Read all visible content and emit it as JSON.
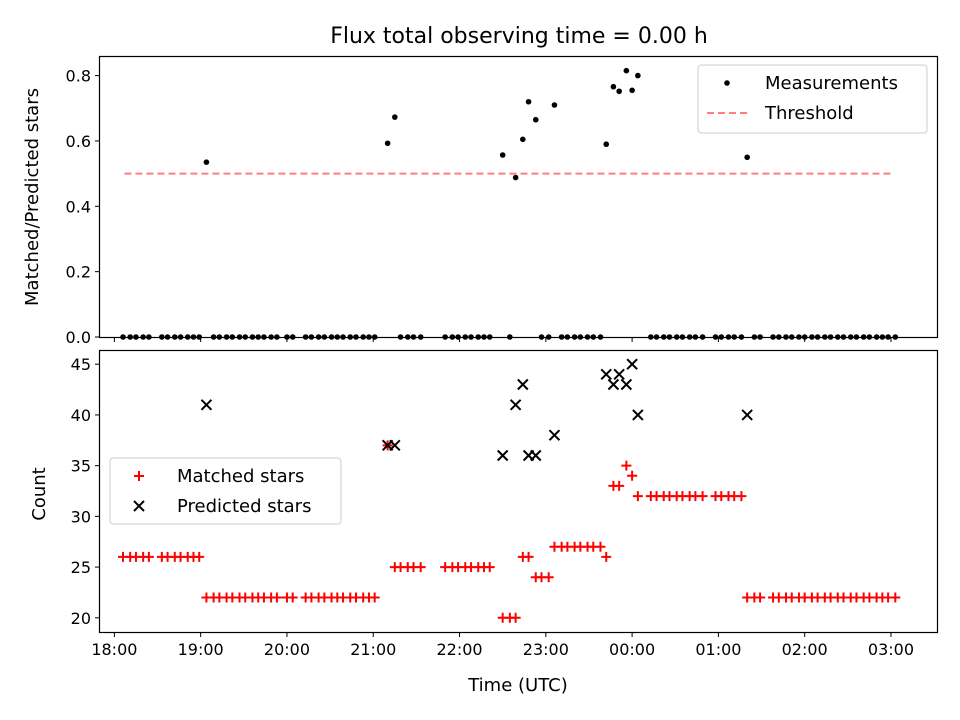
{
  "title": "Flux total observing time = 0.00 h",
  "colors": {
    "measurement": "#000000",
    "threshold": "#ff7f7f",
    "matched": "#ff0000",
    "predicted": "#000000"
  },
  "chart_data": [
    {
      "type": "scatter",
      "panel": "top",
      "xlabel": "",
      "ylabel": "Matched/Predicted stars",
      "xlim": [
        "17:50",
        "03:32"
      ],
      "ylim": [
        0,
        0.86
      ],
      "x_ticks": [
        "18:00",
        "19:00",
        "20:00",
        "21:00",
        "22:00",
        "23:00",
        "00:00",
        "01:00",
        "02:00",
        "03:00"
      ],
      "y_ticks": [
        "0.0",
        "0.2",
        "0.4",
        "0.6",
        "0.8"
      ],
      "legend": {
        "position": "top-right",
        "entries": [
          "Measurements",
          "Threshold"
        ]
      },
      "threshold": {
        "value": 0.5,
        "x_start": "18:07",
        "x_end": "03:02"
      },
      "series": [
        {
          "name": "Measurements",
          "marker": "dot",
          "points": [
            [
              "18:06",
              0
            ],
            [
              "18:11",
              0
            ],
            [
              "18:15",
              0
            ],
            [
              "18:20",
              0
            ],
            [
              "18:24",
              0
            ],
            [
              "18:33",
              0
            ],
            [
              "18:37",
              0
            ],
            [
              "18:42",
              0
            ],
            [
              "18:46",
              0
            ],
            [
              "18:51",
              0
            ],
            [
              "18:55",
              0
            ],
            [
              "18:59",
              0
            ],
            [
              "19:04",
              0.535
            ],
            [
              "19:09",
              0
            ],
            [
              "19:13",
              0
            ],
            [
              "19:18",
              0
            ],
            [
              "19:22",
              0
            ],
            [
              "19:27",
              0
            ],
            [
              "19:31",
              0
            ],
            [
              "19:36",
              0
            ],
            [
              "19:40",
              0
            ],
            [
              "19:44",
              0
            ],
            [
              "19:49",
              0
            ],
            [
              "19:53",
              0
            ],
            [
              "20:00",
              0
            ],
            [
              "20:04",
              0
            ],
            [
              "20:13",
              0
            ],
            [
              "20:17",
              0
            ],
            [
              "20:22",
              0
            ],
            [
              "20:26",
              0
            ],
            [
              "20:31",
              0
            ],
            [
              "20:35",
              0
            ],
            [
              "20:39",
              0
            ],
            [
              "20:44",
              0
            ],
            [
              "20:48",
              0
            ],
            [
              "20:53",
              0
            ],
            [
              "20:57",
              0
            ],
            [
              "21:01",
              0
            ],
            [
              "21:10",
              0.593
            ],
            [
              "21:15",
              0.673
            ],
            [
              "21:19",
              0
            ],
            [
              "21:24",
              0
            ],
            [
              "21:28",
              0
            ],
            [
              "21:33",
              0
            ],
            [
              "21:50",
              0
            ],
            [
              "21:55",
              0
            ],
            [
              "21:59",
              0
            ],
            [
              "22:04",
              0
            ],
            [
              "22:08",
              0
            ],
            [
              "22:13",
              0
            ],
            [
              "22:17",
              0
            ],
            [
              "22:21",
              0
            ],
            [
              "22:30",
              0.557
            ],
            [
              "22:35",
              0
            ],
            [
              "22:39",
              0.488
            ],
            [
              "22:44",
              0.605
            ],
            [
              "22:48",
              0.72
            ],
            [
              "22:53",
              0.665
            ],
            [
              "22:57",
              0
            ],
            [
              "23:02",
              0
            ],
            [
              "23:06",
              0.71
            ],
            [
              "23:11",
              0
            ],
            [
              "23:15",
              0
            ],
            [
              "23:20",
              0
            ],
            [
              "23:24",
              0
            ],
            [
              "23:29",
              0
            ],
            [
              "23:33",
              0
            ],
            [
              "23:38",
              0
            ],
            [
              "23:42",
              0.59
            ],
            [
              "23:47",
              0.766
            ],
            [
              "23:51",
              0.752
            ],
            [
              "23:56",
              0.815
            ],
            [
              "00:00",
              0.755
            ],
            [
              "00:04",
              0.8
            ],
            [
              "00:13",
              0
            ],
            [
              "00:17",
              0
            ],
            [
              "00:22",
              0
            ],
            [
              "00:26",
              0
            ],
            [
              "00:31",
              0
            ],
            [
              "00:35",
              0
            ],
            [
              "00:40",
              0
            ],
            [
              "00:44",
              0
            ],
            [
              "00:49",
              0
            ],
            [
              "00:58",
              0
            ],
            [
              "01:02",
              0
            ],
            [
              "01:07",
              0
            ],
            [
              "01:11",
              0
            ],
            [
              "01:16",
              0
            ],
            [
              "01:20",
              0.55
            ],
            [
              "01:25",
              0
            ],
            [
              "01:29",
              0
            ],
            [
              "01:38",
              0
            ],
            [
              "01:42",
              0
            ],
            [
              "01:47",
              0
            ],
            [
              "01:51",
              0
            ],
            [
              "01:56",
              0
            ],
            [
              "02:00",
              0
            ],
            [
              "02:05",
              0
            ],
            [
              "02:09",
              0
            ],
            [
              "02:14",
              0
            ],
            [
              "02:18",
              0
            ],
            [
              "02:23",
              0
            ],
            [
              "02:27",
              0
            ],
            [
              "02:32",
              0
            ],
            [
              "02:36",
              0
            ],
            [
              "02:41",
              0
            ],
            [
              "02:45",
              0
            ],
            [
              "02:50",
              0
            ],
            [
              "02:54",
              0
            ],
            [
              "02:58",
              0
            ],
            [
              "03:03",
              0
            ]
          ]
        }
      ]
    },
    {
      "type": "scatter",
      "panel": "bottom",
      "xlabel": "Time (UTC)",
      "ylabel": "Count",
      "xlim": [
        "17:50",
        "03:32"
      ],
      "ylim": [
        18.6,
        46.4
      ],
      "x_ticks": [
        "18:00",
        "19:00",
        "20:00",
        "21:00",
        "22:00",
        "23:00",
        "00:00",
        "01:00",
        "02:00",
        "03:00"
      ],
      "y_ticks": [
        "20",
        "25",
        "30",
        "35",
        "40",
        "45"
      ],
      "legend": {
        "position": "center-left",
        "entries": [
          "Matched stars",
          "Predicted stars"
        ]
      },
      "series": [
        {
          "name": "Matched stars",
          "marker": "plus",
          "points": [
            [
              "18:06",
              26
            ],
            [
              "18:11",
              26
            ],
            [
              "18:15",
              26
            ],
            [
              "18:20",
              26
            ],
            [
              "18:24",
              26
            ],
            [
              "18:33",
              26
            ],
            [
              "18:37",
              26
            ],
            [
              "18:42",
              26
            ],
            [
              "18:46",
              26
            ],
            [
              "18:51",
              26
            ],
            [
              "18:55",
              26
            ],
            [
              "18:59",
              26
            ],
            [
              "19:04",
              22
            ],
            [
              "19:09",
              22
            ],
            [
              "19:13",
              22
            ],
            [
              "19:18",
              22
            ],
            [
              "19:22",
              22
            ],
            [
              "19:27",
              22
            ],
            [
              "19:31",
              22
            ],
            [
              "19:36",
              22
            ],
            [
              "19:40",
              22
            ],
            [
              "19:44",
              22
            ],
            [
              "19:49",
              22
            ],
            [
              "19:53",
              22
            ],
            [
              "20:00",
              22
            ],
            [
              "20:04",
              22
            ],
            [
              "20:13",
              22
            ],
            [
              "20:17",
              22
            ],
            [
              "20:22",
              22
            ],
            [
              "20:26",
              22
            ],
            [
              "20:31",
              22
            ],
            [
              "20:35",
              22
            ],
            [
              "20:39",
              22
            ],
            [
              "20:44",
              22
            ],
            [
              "20:48",
              22
            ],
            [
              "20:53",
              22
            ],
            [
              "20:57",
              22
            ],
            [
              "21:01",
              22
            ],
            [
              "21:10",
              37
            ],
            [
              "21:15",
              25
            ],
            [
              "21:19",
              25
            ],
            [
              "21:24",
              25
            ],
            [
              "21:28",
              25
            ],
            [
              "21:33",
              25
            ],
            [
              "21:50",
              25
            ],
            [
              "21:55",
              25
            ],
            [
              "21:59",
              25
            ],
            [
              "22:04",
              25
            ],
            [
              "22:08",
              25
            ],
            [
              "22:13",
              25
            ],
            [
              "22:17",
              25
            ],
            [
              "22:21",
              25
            ],
            [
              "22:30",
              20
            ],
            [
              "22:35",
              20
            ],
            [
              "22:39",
              20
            ],
            [
              "22:44",
              26
            ],
            [
              "22:48",
              26
            ],
            [
              "22:53",
              24
            ],
            [
              "22:57",
              24
            ],
            [
              "23:02",
              24
            ],
            [
              "23:06",
              27
            ],
            [
              "23:11",
              27
            ],
            [
              "23:15",
              27
            ],
            [
              "23:20",
              27
            ],
            [
              "23:24",
              27
            ],
            [
              "23:29",
              27
            ],
            [
              "23:33",
              27
            ],
            [
              "23:38",
              27
            ],
            [
              "23:42",
              26
            ],
            [
              "23:47",
              33
            ],
            [
              "23:51",
              33
            ],
            [
              "23:56",
              35
            ],
            [
              "00:00",
              34
            ],
            [
              "00:04",
              32
            ],
            [
              "00:13",
              32
            ],
            [
              "00:17",
              32
            ],
            [
              "00:22",
              32
            ],
            [
              "00:26",
              32
            ],
            [
              "00:31",
              32
            ],
            [
              "00:35",
              32
            ],
            [
              "00:40",
              32
            ],
            [
              "00:44",
              32
            ],
            [
              "00:49",
              32
            ],
            [
              "00:58",
              32
            ],
            [
              "01:02",
              32
            ],
            [
              "01:07",
              32
            ],
            [
              "01:11",
              32
            ],
            [
              "01:16",
              32
            ],
            [
              "01:20",
              22
            ],
            [
              "01:25",
              22
            ],
            [
              "01:29",
              22
            ],
            [
              "01:38",
              22
            ],
            [
              "01:42",
              22
            ],
            [
              "01:47",
              22
            ],
            [
              "01:51",
              22
            ],
            [
              "01:56",
              22
            ],
            [
              "02:00",
              22
            ],
            [
              "02:05",
              22
            ],
            [
              "02:09",
              22
            ],
            [
              "02:14",
              22
            ],
            [
              "02:18",
              22
            ],
            [
              "02:23",
              22
            ],
            [
              "02:27",
              22
            ],
            [
              "02:32",
              22
            ],
            [
              "02:36",
              22
            ],
            [
              "02:41",
              22
            ],
            [
              "02:45",
              22
            ],
            [
              "02:50",
              22
            ],
            [
              "02:54",
              22
            ],
            [
              "02:58",
              22
            ],
            [
              "03:03",
              22
            ]
          ]
        },
        {
          "name": "Predicted stars",
          "marker": "x",
          "points": [
            [
              "19:04",
              41
            ],
            [
              "21:10",
              37
            ],
            [
              "21:15",
              37
            ],
            [
              "22:30",
              36
            ],
            [
              "22:39",
              41
            ],
            [
              "22:44",
              43
            ],
            [
              "22:48",
              36
            ],
            [
              "22:53",
              36
            ],
            [
              "23:06",
              38
            ],
            [
              "23:42",
              44
            ],
            [
              "23:47",
              43
            ],
            [
              "23:51",
              44
            ],
            [
              "23:56",
              43
            ],
            [
              "00:00",
              45
            ],
            [
              "00:04",
              40
            ],
            [
              "01:20",
              40
            ]
          ]
        }
      ]
    }
  ]
}
